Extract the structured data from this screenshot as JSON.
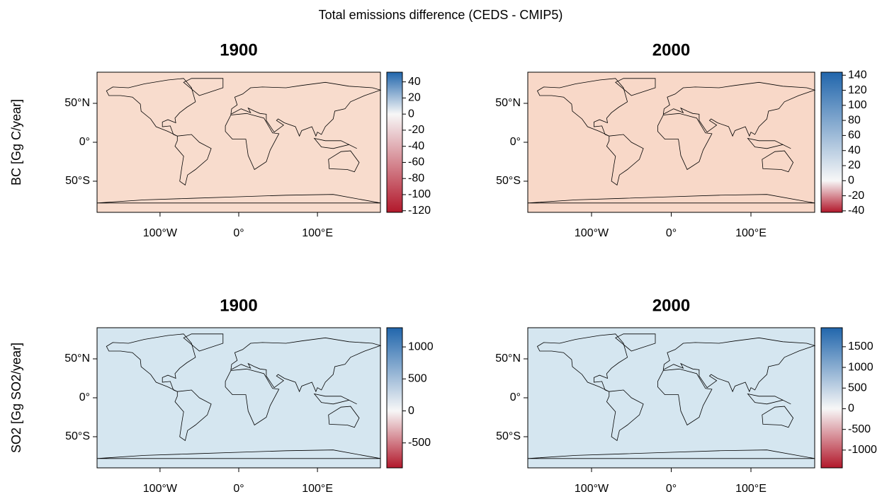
{
  "title": "Total emissions difference (CEDS - CMIP5)",
  "row_labels": [
    "BC [Gg C/year]",
    "SO2 [Gg SO2/year]"
  ],
  "map_xlim": [
    -180,
    180
  ],
  "map_ylim": [
    -90,
    90
  ],
  "lat_ticks": [
    {
      "value": 50,
      "label": "50°N"
    },
    {
      "value": 0,
      "label": "0°"
    },
    {
      "value": -50,
      "label": "50°S"
    }
  ],
  "lon_ticks": [
    {
      "value": -100,
      "label": "100°W"
    },
    {
      "value": 0,
      "label": "0°"
    },
    {
      "value": 100,
      "label": "100°E"
    }
  ],
  "colors": {
    "low": "#b2182b",
    "mid": "#f7f7f7",
    "high": "#2166ac"
  },
  "panels": [
    {
      "title": "1900",
      "background": "#f8dccd",
      "clim": [
        -122,
        52
      ],
      "ticks": [
        40,
        20,
        0,
        -20,
        -40,
        -60,
        -80,
        -100,
        -120
      ]
    },
    {
      "title": "2000",
      "background": "#f8d8c8",
      "clim": [
        -42,
        144
      ],
      "ticks": [
        140,
        120,
        100,
        80,
        60,
        40,
        20,
        0,
        -20,
        -40
      ]
    },
    {
      "title": "1900",
      "background": "#d5e6f0",
      "clim": [
        -890,
        1300
      ],
      "ticks": [
        1000,
        500,
        0,
        -500
      ]
    },
    {
      "title": "2000",
      "background": "#d5e6f0",
      "clim": [
        -1430,
        1960
      ],
      "ticks": [
        1500,
        1000,
        500,
        0,
        -500,
        -1000
      ]
    }
  ]
}
